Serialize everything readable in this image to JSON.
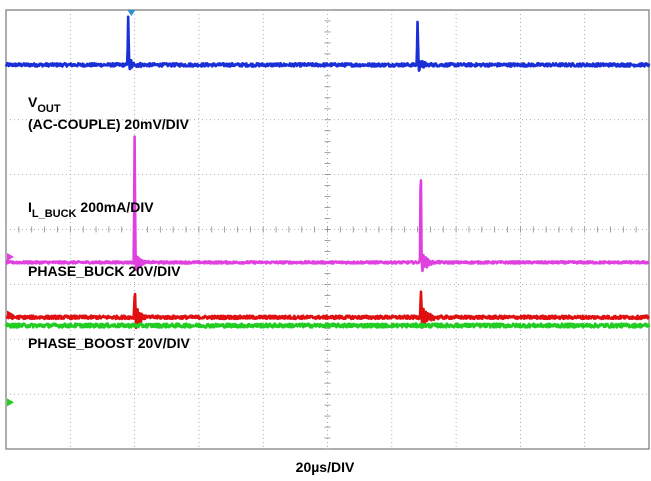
{
  "chart_data": {
    "type": "line",
    "title": "",
    "xlabel": "20µs/DIV",
    "grid": {
      "on": true,
      "divisions_x": 10,
      "divisions_y": 8,
      "minor_ticks_per_div": 5,
      "style": "dotted"
    },
    "xlim": [
      0,
      10
    ],
    "ylim": [
      0,
      8
    ],
    "series": [
      {
        "name": "VOUT",
        "label_main": "V",
        "label_sub": "OUT",
        "label_scale": "(AC-COUPLE) 20mV/DIV",
        "color": "#1a2fd6",
        "baseline_div": 7.0,
        "noise_div": 0.03,
        "events": [
          {
            "x_div": 1.9,
            "spike_div": 0.9,
            "ring_div": 0.15,
            "decay_div": 0.25
          },
          {
            "x_div": 6.4,
            "spike_div": 0.8,
            "ring_div": 0.15,
            "decay_div": 0.25
          }
        ]
      },
      {
        "name": "IL_BUCK",
        "label_main": "I",
        "label_sub": "L_BUCK",
        "label_scale": " 200mA/DIV",
        "color": "#e040e0",
        "baseline_div": 3.4,
        "noise_div": 0.02,
        "events": [
          {
            "x_div": 2.0,
            "spike_div": 2.3,
            "ring_div": 0.25,
            "decay_div": 0.3
          },
          {
            "x_div": 6.45,
            "spike_div": 2.0,
            "ring_div": 0.25,
            "decay_div": 0.3
          }
        ]
      },
      {
        "name": "PHASE_BUCK",
        "label_main": "PHASE_BUCK 20V/DIV",
        "label_sub": "",
        "label_scale": "",
        "color": "#e01010",
        "baseline_div": 2.4,
        "noise_div": 0.03,
        "events": [
          {
            "x_div": 2.0,
            "spike_div": 0.4,
            "ring_div": 0.3,
            "decay_div": 0.3
          },
          {
            "x_div": 6.45,
            "spike_div": 0.4,
            "ring_div": 0.3,
            "decay_div": 0.3
          }
        ]
      },
      {
        "name": "PHASE_BOOST",
        "label_main": "PHASE_BOOST 20V/DIV",
        "label_sub": "",
        "label_scale": "",
        "color": "#22cc22",
        "baseline_div": 2.25,
        "noise_div": 0.035,
        "events": []
      }
    ],
    "markers": {
      "trigger_x_div": 1.95,
      "ground_refs": [
        {
          "color": "#e040e0",
          "y_div": 3.5
        },
        {
          "color": "#e01010",
          "y_div": 2.45
        },
        {
          "color": "#22cc22",
          "y_div": 0.85
        }
      ]
    }
  }
}
